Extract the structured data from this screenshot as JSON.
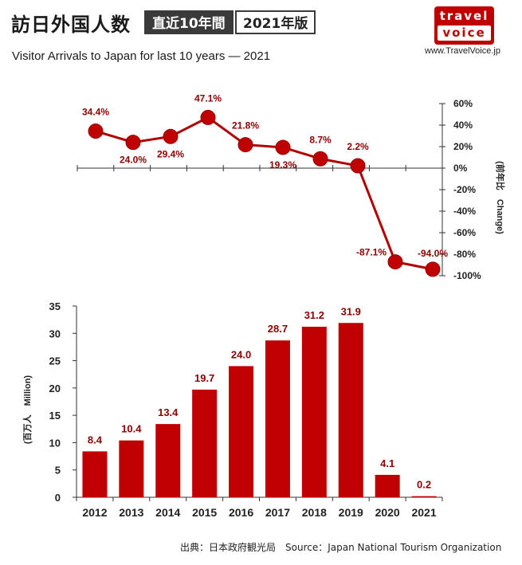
{
  "header": {
    "title_jp": "訪日外国人数",
    "badge_period": "直近10年間",
    "badge_edition": "2021年版",
    "subtitle": "Visitor Arrivals to Japan for last 10 years — 2021",
    "logo_top": "travel",
    "logo_bottom": "voice",
    "site": "www.TravelVoice.jp"
  },
  "footer": {
    "source": "出典：日本政府観光局　Source：Japan  National Tourism   Organization"
  },
  "colors": {
    "accent": "#c00000",
    "bar": "#c00000",
    "line": "#b00000",
    "label": "#8b0000"
  },
  "chart_data": [
    {
      "type": "line",
      "title": "",
      "x": [
        "2012",
        "2013",
        "2014",
        "2015",
        "2016",
        "2017",
        "2018",
        "2019",
        "2020",
        "2021"
      ],
      "series": [
        {
          "name": "",
          "values": [
            34.4,
            24.0,
            29.4,
            47.1,
            21.8,
            19.3,
            8.7,
            2.2,
            -87.1,
            -94.0
          ],
          "labels": [
            "34.4%",
            "24.0%",
            "29.4%",
            "47.1%",
            "21.8%",
            "19.3%",
            "8.7%",
            "2.2%",
            "-87.1%",
            "-94.0%"
          ]
        }
      ],
      "ylabel": "(前年比　Change)",
      "ylim": [
        -100,
        60
      ],
      "yticks": [
        60,
        40,
        20,
        0,
        -20,
        -40,
        -60,
        -80,
        -100
      ],
      "ytick_labels": [
        "60%",
        "40%",
        "20%",
        "0%",
        "-20%",
        "-40%",
        "-60%",
        "-80%",
        "-100%"
      ],
      "axis_side": "right",
      "grid": false
    },
    {
      "type": "bar",
      "title": "",
      "categories": [
        "2012",
        "2013",
        "2014",
        "2015",
        "2016",
        "2017",
        "2018",
        "2019",
        "2020",
        "2021"
      ],
      "values": [
        8.4,
        10.4,
        13.4,
        19.7,
        24.0,
        28.7,
        31.2,
        31.9,
        4.1,
        0.2
      ],
      "labels": [
        "8.4",
        "10.4",
        "13.4",
        "19.7",
        "24.0",
        "28.7",
        "31.2",
        "31.9",
        "4.1",
        "0.2"
      ],
      "ylabel": "(百万人　Million)",
      "ylim": [
        0,
        35
      ],
      "yticks": [
        0,
        5,
        10,
        15,
        20,
        25,
        30,
        35
      ],
      "ytick_labels": [
        "0",
        "5",
        "10",
        "15",
        "20",
        "25",
        "30",
        "35"
      ],
      "grid": false
    }
  ]
}
